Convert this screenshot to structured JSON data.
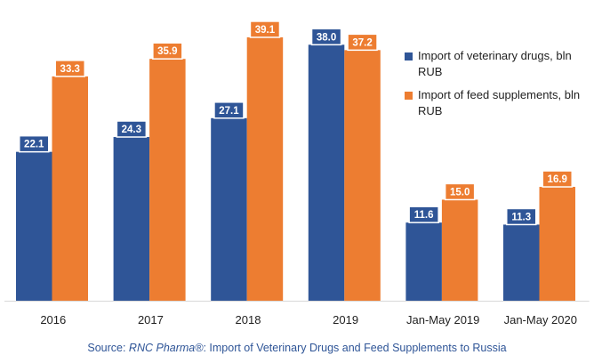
{
  "chart_data": {
    "type": "bar",
    "categories": [
      "2016",
      "2017",
      "2018",
      "2019",
      "Jan-May 2019",
      "Jan-May 2020"
    ],
    "series": [
      {
        "name": "Import of veterinary drugs, bln RUB",
        "values": [
          22.1,
          24.3,
          27.1,
          38.0,
          11.6,
          11.3
        ],
        "color": "#2f5597"
      },
      {
        "name": "Import of feed supplements, bln RUB",
        "values": [
          33.3,
          35.9,
          39.1,
          37.2,
          15.0,
          16.9
        ],
        "color": "#ed7d31"
      }
    ],
    "data_labels": [
      [
        "22.1",
        "24.3",
        "27.1",
        "38.0",
        "11.6",
        "11.3"
      ],
      [
        "33.3",
        "35.9",
        "39.1",
        "37.2",
        "15.0",
        "16.9"
      ]
    ],
    "ylim": [
      0,
      42
    ],
    "grid": false,
    "legend_position": "right"
  },
  "source": {
    "prefix": "Source: ",
    "italic": "RNC Pharma®",
    "suffix": ": Import of Veterinary Drugs and Feed Supplements to Russia"
  }
}
